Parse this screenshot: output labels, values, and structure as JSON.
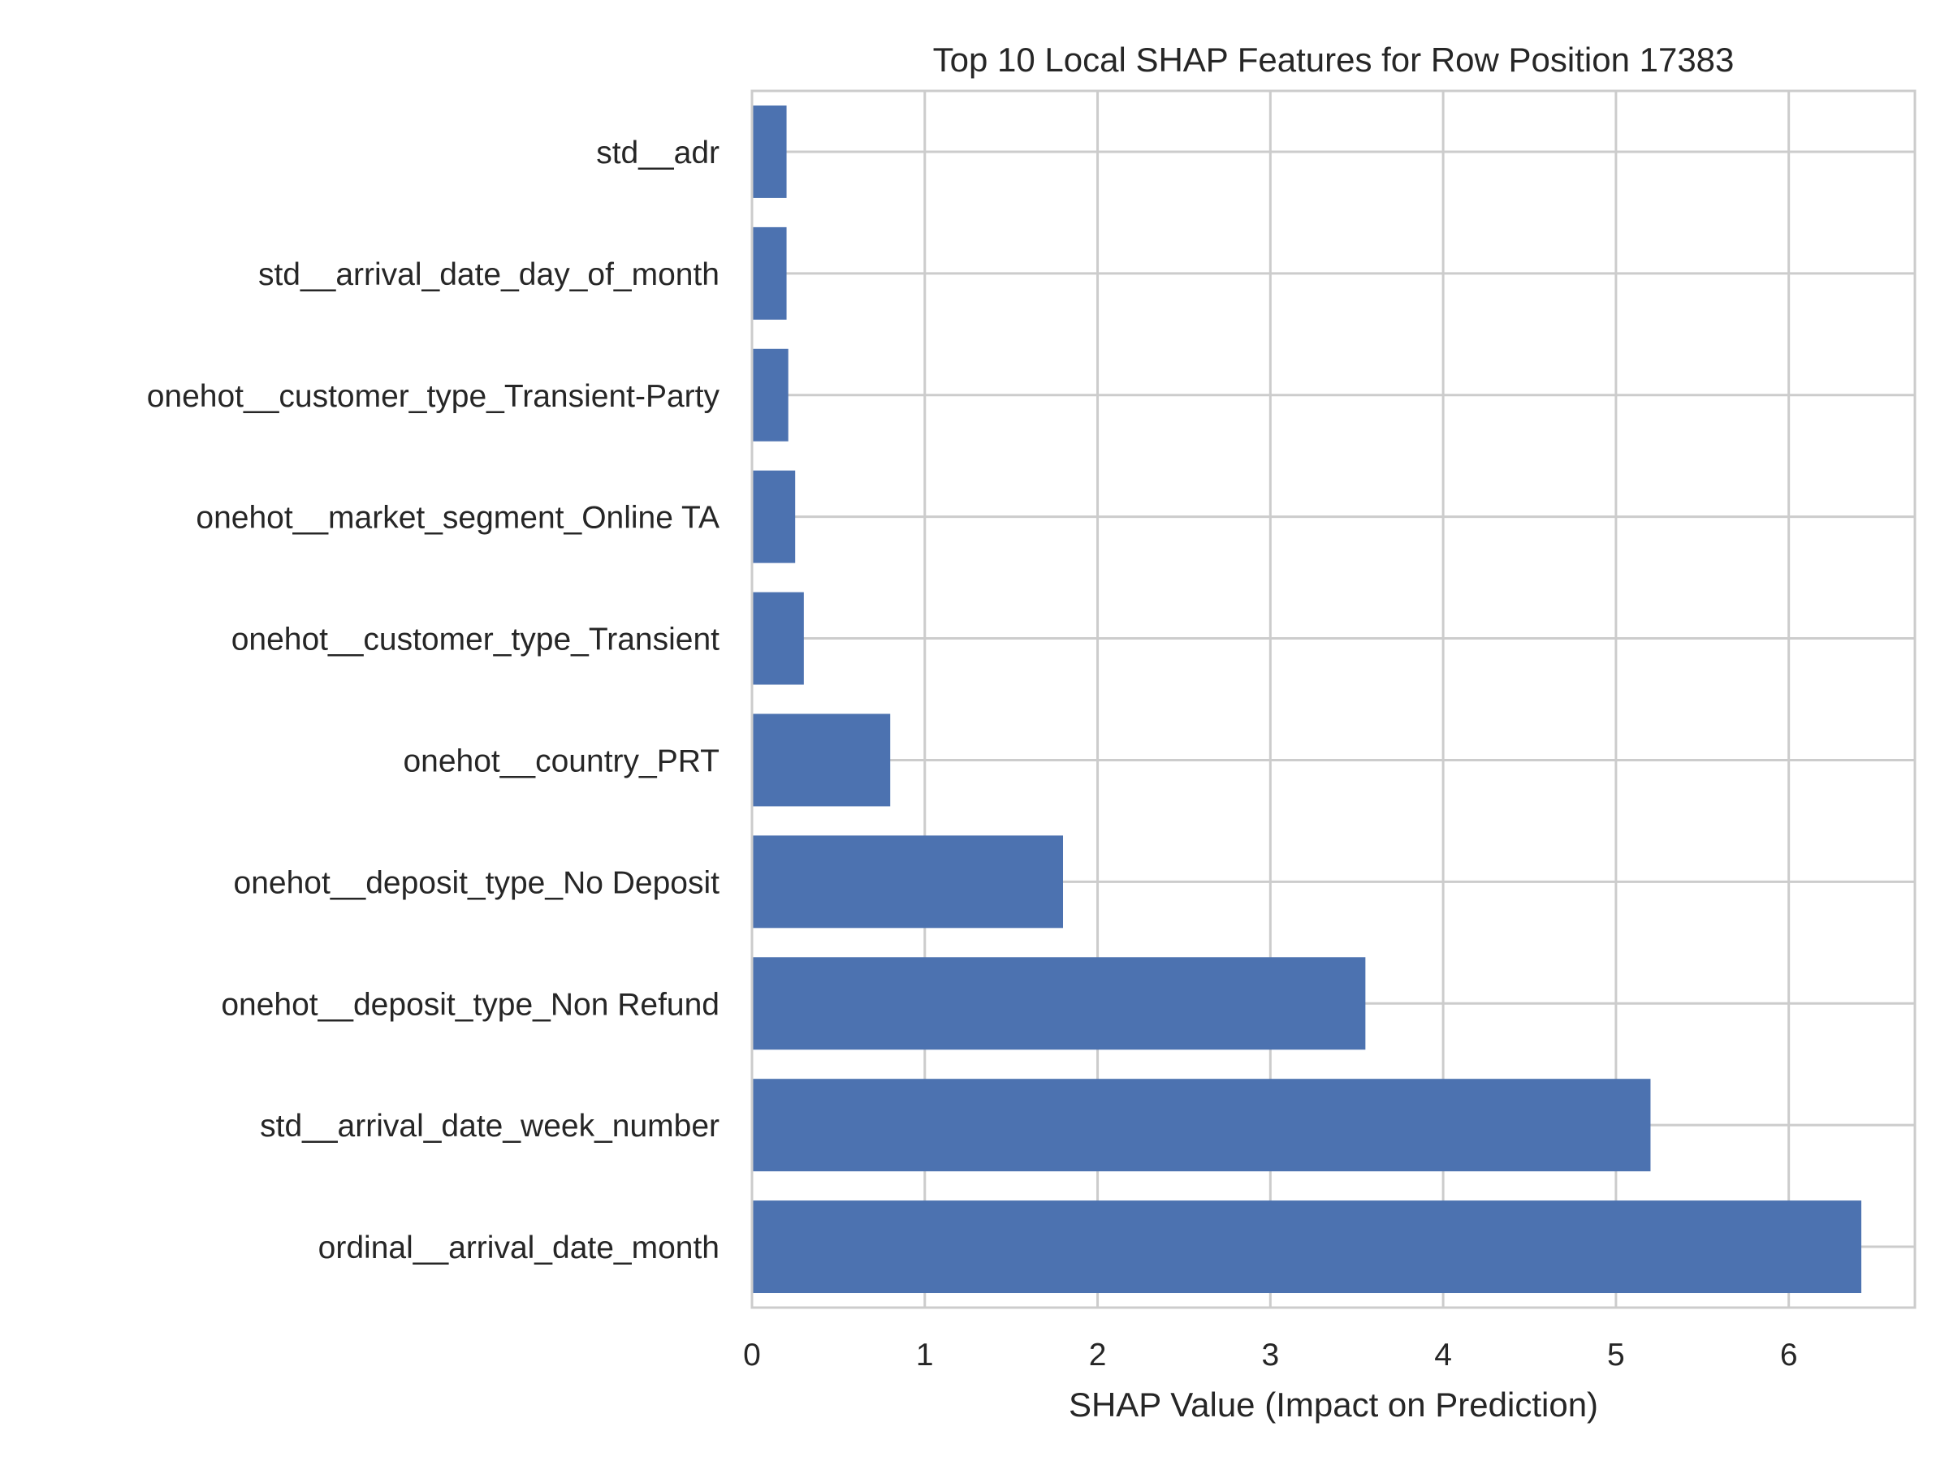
{
  "chart_data": {
    "type": "bar",
    "orientation": "horizontal",
    "title": "Top 10 Local SHAP Features for Row Position 17383",
    "xlabel": "SHAP Value (Impact on Prediction)",
    "ylabel": "",
    "xlim": [
      0,
      6.73
    ],
    "xticks": [
      "0",
      "1",
      "2",
      "3",
      "4",
      "5",
      "6"
    ],
    "grid": true,
    "bar_color": "#4c72b0",
    "categories": [
      "std__adr",
      "std__arrival_date_day_of_month",
      "onehot__customer_type_Transient-Party",
      "onehot__market_segment_Online TA",
      "onehot__customer_type_Transient",
      "onehot__country_PRT",
      "onehot__deposit_type_No Deposit",
      "onehot__deposit_type_Non Refund",
      "std__arrival_date_week_number",
      "ordinal__arrival_date_month"
    ],
    "values": [
      0.2,
      0.2,
      0.21,
      0.25,
      0.3,
      0.8,
      1.8,
      3.55,
      5.2,
      6.42
    ]
  }
}
